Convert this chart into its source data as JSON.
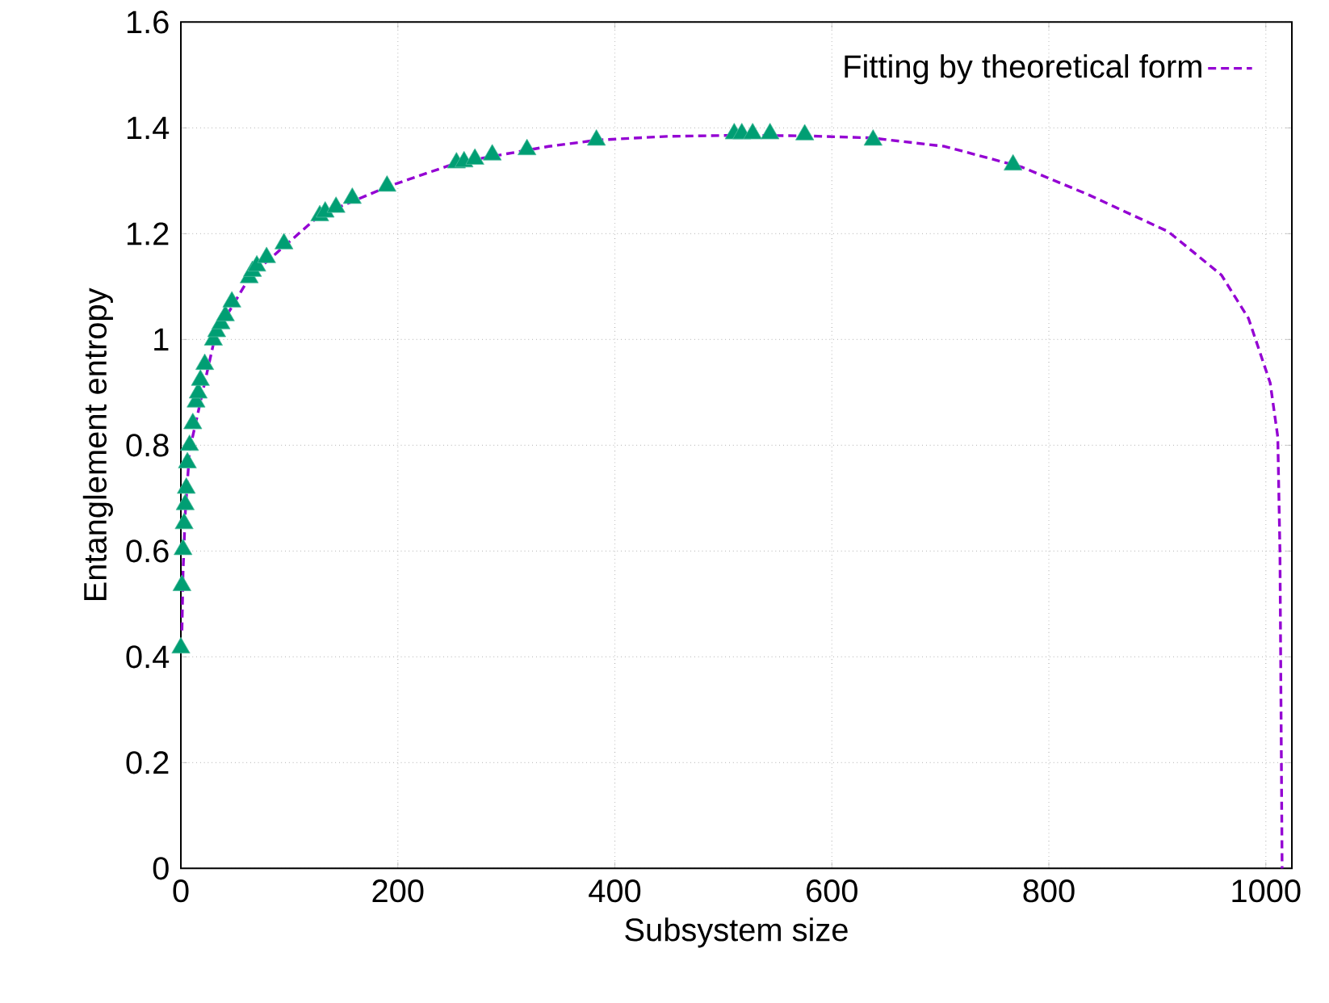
{
  "chart_data": {
    "type": "scatter",
    "xlabel": "Subsystem size",
    "ylabel": "Entanglement entropy",
    "xlim": [
      0,
      1024
    ],
    "ylim": [
      0,
      1.6
    ],
    "xticks": [
      0,
      200,
      400,
      600,
      800,
      1000
    ],
    "yticks": [
      0,
      0.2,
      0.4,
      0.6,
      0.8,
      1,
      1.2,
      1.4,
      1.6
    ],
    "grid": true,
    "legend": "top right",
    "series": [
      {
        "color": "#009e73",
        "marker": "triangle",
        "x": [
          0,
          1,
          2,
          3,
          4,
          5,
          6,
          8,
          11,
          14,
          16,
          18,
          22,
          30,
          33,
          37,
          41,
          47,
          63,
          66,
          70,
          79,
          95,
          128,
          133,
          143,
          158,
          190,
          254,
          261,
          271,
          287,
          319,
          383,
          510,
          517,
          527,
          543,
          575,
          638,
          767
        ],
        "values": [
          0.417,
          0.535,
          0.603,
          0.652,
          0.688,
          0.719,
          0.767,
          0.8,
          0.841,
          0.882,
          0.899,
          0.923,
          0.953,
          0.999,
          1.015,
          1.03,
          1.045,
          1.071,
          1.117,
          1.129,
          1.139,
          1.155,
          1.181,
          1.234,
          1.241,
          1.25,
          1.267,
          1.29,
          1.334,
          1.336,
          1.341,
          1.349,
          1.359,
          1.377,
          1.389,
          1.389,
          1.389,
          1.389,
          1.387,
          1.377,
          1.33
        ]
      },
      {
        "type": "line",
        "name": "Fitting by theoretical form",
        "color": "#9400d3",
        "line_style": "dashed",
        "marker": "none",
        "x": [
          1,
          2,
          4,
          8,
          16,
          32,
          64,
          128,
          192,
          256,
          339,
          384,
          448,
          512,
          576,
          637,
          704,
          775,
          835,
          910,
          959,
          984,
          1004,
          1011,
          1013,
          1014,
          1015
        ],
        "values": [
          0.45,
          0.56,
          0.67,
          0.79,
          null,
          1.01,
          1.12,
          1.235,
          1.29,
          1.335,
          1.365,
          1.377,
          1.384,
          1.386,
          1.385,
          1.381,
          1.365,
          1.326,
          1.275,
          1.204,
          1.122,
          1.04,
          0.918,
          0.816,
          0.6,
          0.3,
          0
        ]
      }
    ]
  }
}
